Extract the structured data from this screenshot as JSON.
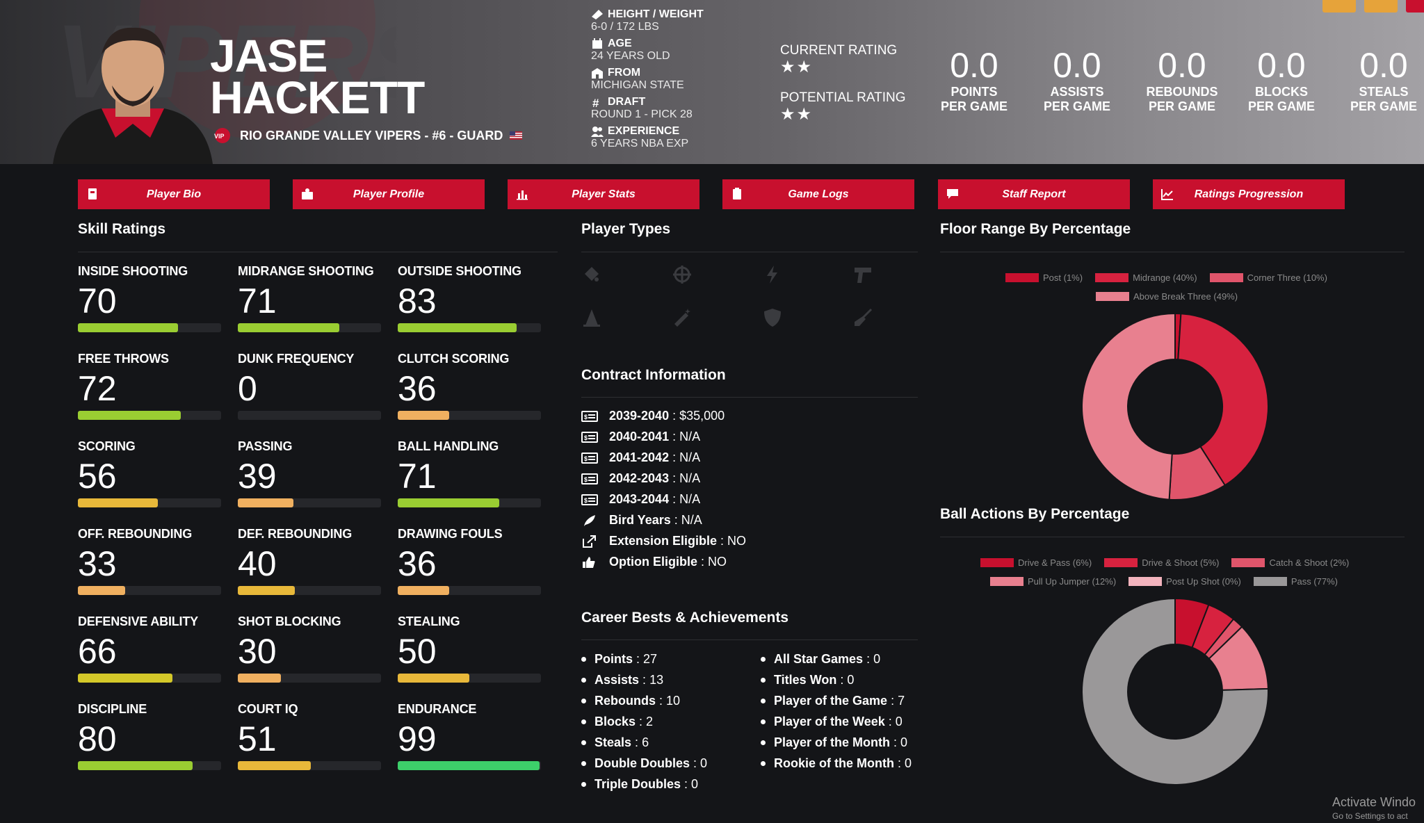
{
  "player": {
    "first_name": "JASE",
    "last_name": "HACKETT",
    "team_line": "RIO GRANDE VALLEY VIPERS - #6 - GUARD"
  },
  "bio": [
    {
      "label": "HEIGHT / WEIGHT",
      "value": "6-0 / 172 LBS",
      "icon": "ruler-icon"
    },
    {
      "label": "AGE",
      "value": "24 YEARS OLD",
      "icon": "calendar-icon"
    },
    {
      "label": "FROM",
      "value": "MICHIGAN STATE",
      "icon": "school-icon"
    },
    {
      "label": "DRAFT",
      "value": "ROUND 1 - PICK 28",
      "icon": "hashtag-icon"
    },
    {
      "label": "EXPERIENCE",
      "value": "6 YEARS NBA EXP",
      "icon": "users-icon"
    }
  ],
  "ratings": {
    "current_label": "CURRENT RATING",
    "current_stars": "★★",
    "potential_label": "POTENTIAL RATING",
    "potential_stars": "★★"
  },
  "stats": [
    {
      "value": "0.0",
      "line1": "POINTS",
      "line2": "PER GAME"
    },
    {
      "value": "0.0",
      "line1": "ASSISTS",
      "line2": "PER GAME"
    },
    {
      "value": "0.0",
      "line1": "REBOUNDS",
      "line2": "PER GAME"
    },
    {
      "value": "0.0",
      "line1": "BLOCKS",
      "line2": "PER GAME"
    },
    {
      "value": "0.0",
      "line1": "STEALS",
      "line2": "PER GAME"
    }
  ],
  "nav": [
    {
      "label": "Player Bio",
      "icon": "id-card-icon"
    },
    {
      "label": "Player Profile",
      "icon": "profile-icon"
    },
    {
      "label": "Player Stats",
      "icon": "bar-chart-icon"
    },
    {
      "label": "Game Logs",
      "icon": "clipboard-icon"
    },
    {
      "label": "Staff Report",
      "icon": "comment-icon"
    },
    {
      "label": "Ratings Progression",
      "icon": "line-chart-icon"
    }
  ],
  "sections": {
    "skills": "Skill Ratings",
    "player_types": "Player Types",
    "contract": "Contract Information",
    "career": "Career Bests & Achievements",
    "floor": "Floor Range By Percentage",
    "ball": "Ball Actions By Percentage"
  },
  "skills": [
    {
      "label": "INSIDE SHOOTING",
      "value": "70",
      "level": 70,
      "color": "#9acd32"
    },
    {
      "label": "MIDRANGE SHOOTING",
      "value": "71",
      "level": 71,
      "color": "#9acd32"
    },
    {
      "label": "OUTSIDE SHOOTING",
      "value": "83",
      "level": 83,
      "color": "#9acd32"
    },
    {
      "label": "FREE THROWS",
      "value": "72",
      "level": 72,
      "color": "#9acd32"
    },
    {
      "label": "DUNK FREQUENCY",
      "value": "0",
      "level": 0,
      "color": "#9acd32"
    },
    {
      "label": "CLUTCH SCORING",
      "value": "36",
      "level": 36,
      "color": "#f0b060"
    },
    {
      "label": "SCORING",
      "value": "56",
      "level": 56,
      "color": "#e8b83a"
    },
    {
      "label": "PASSING",
      "value": "39",
      "level": 39,
      "color": "#f0b060"
    },
    {
      "label": "BALL HANDLING",
      "value": "71",
      "level": 71,
      "color": "#9acd32"
    },
    {
      "label": "OFF. REBOUNDING",
      "value": "33",
      "level": 33,
      "color": "#f0b060"
    },
    {
      "label": "DEF. REBOUNDING",
      "value": "40",
      "level": 40,
      "color": "#e8b83a"
    },
    {
      "label": "DRAWING FOULS",
      "value": "36",
      "level": 36,
      "color": "#f0b060"
    },
    {
      "label": "DEFENSIVE ABILITY",
      "value": "66",
      "level": 66,
      "color": "#d4c829"
    },
    {
      "label": "SHOT BLOCKING",
      "value": "30",
      "level": 30,
      "color": "#f0b060"
    },
    {
      "label": "STEALING",
      "value": "50",
      "level": 50,
      "color": "#e8b83a"
    },
    {
      "label": "DISCIPLINE",
      "value": "80",
      "level": 80,
      "color": "#9acd32"
    },
    {
      "label": "COURT IQ",
      "value": "51",
      "level": 51,
      "color": "#e8b83a"
    },
    {
      "label": "ENDURANCE",
      "value": "99",
      "level": 99,
      "color": "#3dcf6a"
    }
  ],
  "player_types": [
    "paint-icon",
    "crosshair-icon",
    "bolt-icon",
    "pistol-icon",
    "cone-icon",
    "wand-icon",
    "shield-icon",
    "broom-icon"
  ],
  "contract": [
    {
      "label": "2039-2040",
      "value": "$35,000",
      "icon": "money-icon"
    },
    {
      "label": "2040-2041",
      "value": "N/A",
      "icon": "money-icon"
    },
    {
      "label": "2041-2042",
      "value": "N/A",
      "icon": "money-icon"
    },
    {
      "label": "2042-2043",
      "value": "N/A",
      "icon": "money-icon"
    },
    {
      "label": "2043-2044",
      "value": "N/A",
      "icon": "money-icon"
    },
    {
      "label": "Bird Years",
      "value": "N/A",
      "icon": "feather-icon"
    },
    {
      "label": "Extension Eligible",
      "value": "NO",
      "icon": "external-link-icon"
    },
    {
      "label": "Option Eligible",
      "value": "NO",
      "icon": "thumbs-up-icon"
    }
  ],
  "career_left": [
    {
      "label": "Points",
      "value": "27"
    },
    {
      "label": "Assists",
      "value": "13"
    },
    {
      "label": "Rebounds",
      "value": "10"
    },
    {
      "label": "Blocks",
      "value": "2"
    },
    {
      "label": "Steals",
      "value": "6"
    },
    {
      "label": "Double Doubles",
      "value": "0"
    },
    {
      "label": "Triple Doubles",
      "value": "0"
    }
  ],
  "career_right": [
    {
      "label": "All Star Games",
      "value": "0"
    },
    {
      "label": "Titles Won",
      "value": "0"
    },
    {
      "label": "Player of the Game",
      "value": "7"
    },
    {
      "label": "Player of the Week",
      "value": "0"
    },
    {
      "label": "Player of the Month",
      "value": "0"
    },
    {
      "label": "Rookie of the Month",
      "value": "0"
    }
  ],
  "chart_data": [
    {
      "type": "pie",
      "title": "Floor Range By Percentage",
      "categories": [
        "Post",
        "Midrange",
        "Corner Three",
        "Above Break Three"
      ],
      "values": [
        1,
        40,
        10,
        49
      ],
      "legend_labels": [
        "Post (1%)",
        "Midrange (40%)",
        "Corner Three (10%)",
        "Above Break Three (49%)"
      ],
      "colors": [
        "#c8102e",
        "#d7223f",
        "#e0556b",
        "#e8808f"
      ],
      "legend": "top"
    },
    {
      "type": "pie",
      "title": "Ball Actions By Percentage",
      "categories": [
        "Drive & Pass",
        "Drive & Shoot",
        "Catch & Shoot",
        "Pull Up Jumper",
        "Post Up Shot",
        "Pass"
      ],
      "values": [
        6,
        5,
        2,
        12,
        0,
        77
      ],
      "legend_labels": [
        "Drive & Pass (6%)",
        "Drive & Shoot (5%)",
        "Catch & Shoot (2%)",
        "Pull Up Jumper (12%)",
        "Post Up Shot (0%)",
        "Pass (77%)"
      ],
      "colors": [
        "#c8102e",
        "#d7223f",
        "#e0556b",
        "#e8808f",
        "#f2b3bd",
        "#9a9899"
      ],
      "legend": "top"
    }
  ],
  "watermark": {
    "line1": "Activate Windo",
    "line2": "Go to Settings to act"
  }
}
